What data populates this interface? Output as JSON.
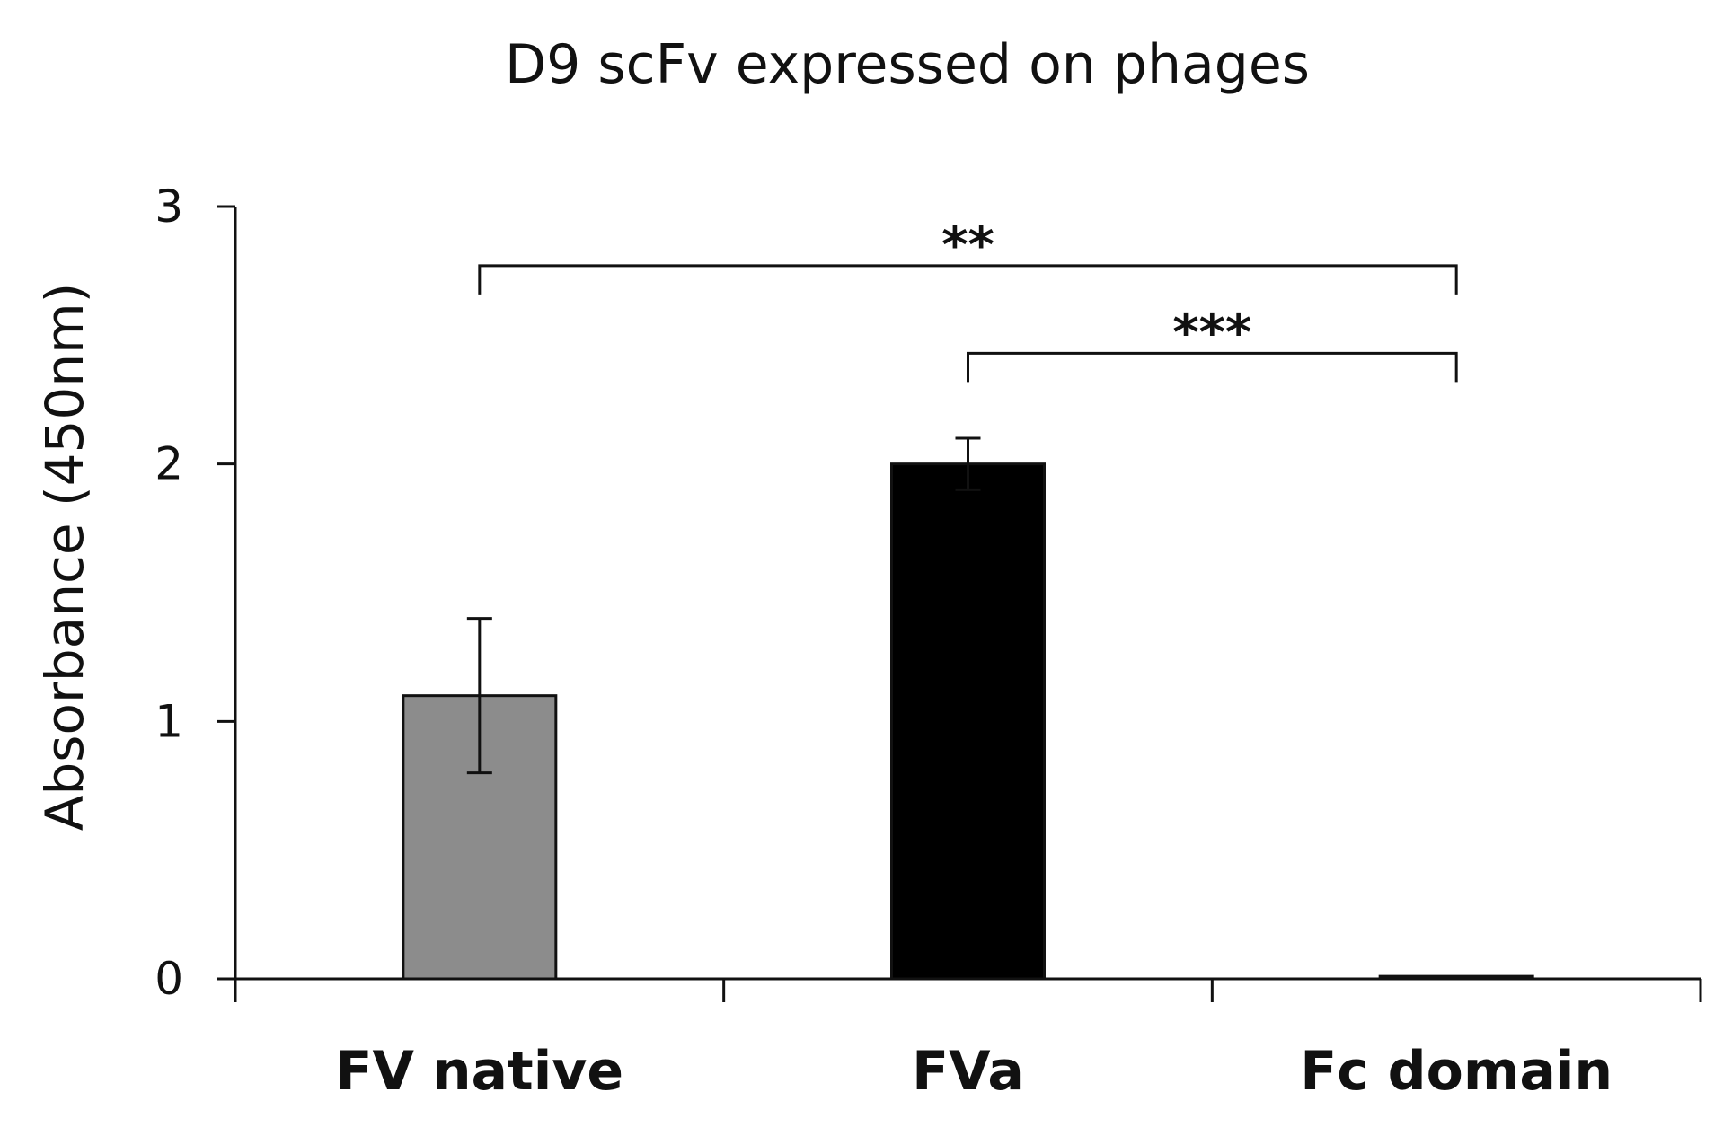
{
  "chart_data": {
    "type": "bar",
    "title": "D9 scFv expressed on phages",
    "xlabel": "",
    "ylabel": "Absorbance (450nm)",
    "ylim": [
      0,
      3
    ],
    "yticks": [
      "0",
      "1",
      "2",
      "3"
    ],
    "grid": false,
    "legend": "none",
    "categories": [
      "FV native",
      "FVa",
      "Fc domain"
    ],
    "values": [
      1.1,
      2.0,
      0.01
    ],
    "errors": [
      0.3,
      0.1,
      0.0
    ],
    "bar_colors": [
      "#8c8c8c",
      "#000000",
      "#8c8c8c"
    ],
    "significance": [
      {
        "from": "FV native",
        "to": "Fc domain",
        "label": "**",
        "height": 2.77
      },
      {
        "from": "FVa",
        "to": "Fc domain",
        "label": "***",
        "height": 2.43
      }
    ]
  }
}
